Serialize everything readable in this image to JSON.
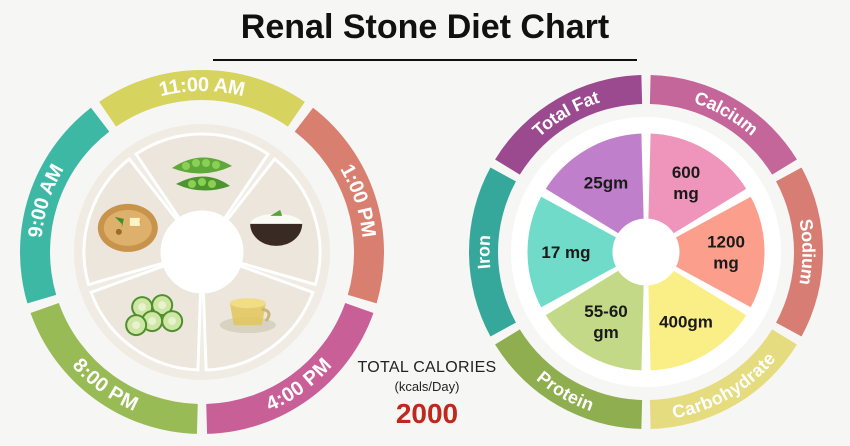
{
  "page": {
    "title": "Renal Stone Diet Chart"
  },
  "meal_wheel": {
    "meals": [
      {
        "time": "9:00 AM",
        "color": "#3cb8a5",
        "food_icon": "paratha-icon"
      },
      {
        "time": "11:00 AM",
        "color": "#d6d35f",
        "food_icon": "green-peas-icon"
      },
      {
        "time": "1:00 PM",
        "color": "#d97f70",
        "food_icon": "rice-bowl-icon"
      },
      {
        "time": "4:00 PM",
        "color": "#c95f97",
        "food_icon": "herbal-tea-icon"
      },
      {
        "time": "8:00 PM",
        "color": "#98bb55",
        "food_icon": "cucumber-salad-icon"
      }
    ]
  },
  "nutrient_wheel": {
    "segments": [
      {
        "label": "Total Fat",
        "value": "25gm",
        "ring_color": "#9c4a8f",
        "fill_color": "#c07fcb"
      },
      {
        "label": "Calcium",
        "value": "600\nmg",
        "ring_color": "#c4669a",
        "fill_color": "#ef95bb"
      },
      {
        "label": "Sodium",
        "value": "1200\nmg",
        "ring_color": "#d77d73",
        "fill_color": "#fc9e8c"
      },
      {
        "label": "Carbohydrate",
        "value": "400gm",
        "ring_color": "#e5dc80",
        "fill_color": "#f9ef86"
      },
      {
        "label": "Protein",
        "value": "55-60\ngm",
        "ring_color": "#8eae4f",
        "fill_color": "#c3d987"
      },
      {
        "label": "Iron",
        "value": "17 mg",
        "ring_color": "#35a89b",
        "fill_color": "#6fdbc8"
      }
    ]
  },
  "total_calories": {
    "title": "TOTAL CALORIES",
    "unit": "(kcals/Day)",
    "value": "2000"
  }
}
